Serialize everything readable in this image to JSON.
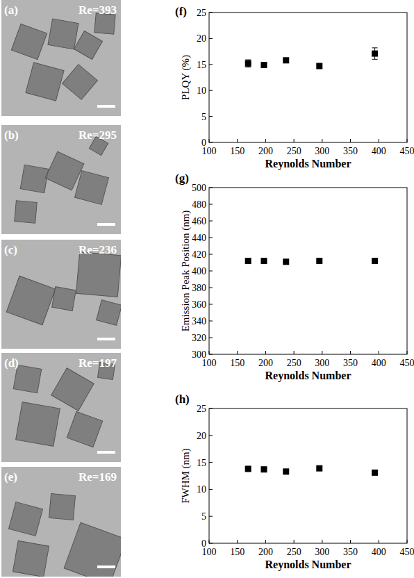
{
  "panels": [
    {
      "label": "(a)",
      "text": "Re=393"
    },
    {
      "label": "(b)",
      "text": "Re=295"
    },
    {
      "label": "(c)",
      "text": "Re=236"
    },
    {
      "label": "(d)",
      "text": "Re=197"
    },
    {
      "label": "(e)",
      "text": "Re=169"
    }
  ],
  "chart_data": [
    {
      "type": "scatter",
      "title": "(f)",
      "x_label": "Reynolds Number",
      "y_label": "PLQY (%)",
      "x": [
        169,
        197,
        236,
        295,
        393
      ],
      "values": [
        15.2,
        14.9,
        15.8,
        14.7,
        17.1
      ],
      "errors": [
        0.7,
        0.3,
        0.3,
        0.2,
        1.1
      ],
      "xlim": [
        100,
        450
      ],
      "xticks": [
        100,
        150,
        200,
        250,
        300,
        350,
        400,
        450
      ],
      "ylim": [
        0,
        25
      ],
      "yticks": [
        0,
        5,
        10,
        15,
        20,
        25
      ],
      "marker": "square",
      "color": "#000000"
    },
    {
      "type": "scatter",
      "title": "(g)",
      "x_label": "Reynolds Number",
      "y_label": "Emission Peak Position (nm)",
      "x": [
        169,
        197,
        236,
        295,
        393
      ],
      "values": [
        412,
        412,
        411,
        412,
        412
      ],
      "xlim": [
        100,
        450
      ],
      "xticks": [
        100,
        150,
        200,
        250,
        300,
        350,
        400,
        450
      ],
      "ylim": [
        300,
        500
      ],
      "yticks": [
        300,
        320,
        340,
        360,
        380,
        400,
        420,
        440,
        460,
        480,
        500
      ],
      "marker": "square",
      "color": "#000000"
    },
    {
      "type": "scatter",
      "title": "(h)",
      "x_label": "Reynolds Number",
      "y_label": "FWHM (nm)",
      "x": [
        169,
        197,
        236,
        295,
        393
      ],
      "values": [
        13.8,
        13.7,
        13.3,
        13.9,
        13.1
      ],
      "xlim": [
        100,
        450
      ],
      "xticks": [
        100,
        150,
        200,
        250,
        300,
        350,
        400,
        450
      ],
      "ylim": [
        0,
        25
      ],
      "yticks": [
        0,
        5,
        10,
        15,
        20,
        25
      ],
      "marker": "square",
      "color": "#000000"
    }
  ]
}
